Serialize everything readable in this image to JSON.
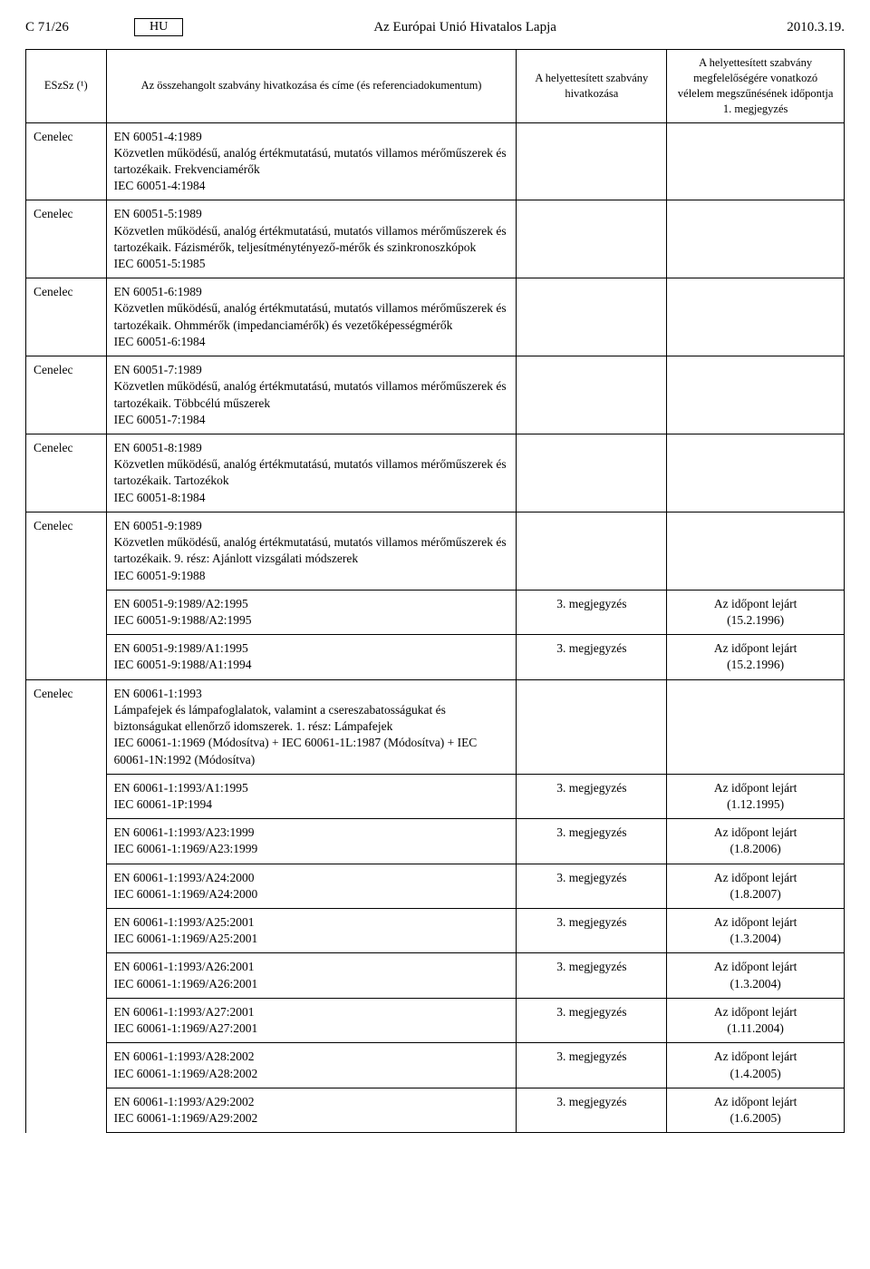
{
  "header": {
    "page_ref": "C 71/26",
    "lang": "HU",
    "journal": "Az Európai Unió Hivatalos Lapja",
    "date": "2010.3.19."
  },
  "columns": {
    "org": "ESzSz (¹)",
    "title": "Az összehangolt szabvány hivatkozása és címe\n(és referenciadokumentum)",
    "ref": "A helyettesített szabvány hivatkozása",
    "deadline": "A helyettesített szabvány megfelelőségére vonatkozó vélelem megszűnésének időpontja 1. megjegyzés"
  },
  "rows": [
    {
      "org": "Cenelec",
      "lines": [
        "EN 60051-4:1989",
        "Közvetlen működésű, analóg értékmutatású, mutatós villamos mérőmű­szerek és tartozékaik. Frekvenciamérők",
        "IEC 60051-4:1984"
      ],
      "ref": "",
      "deadline": ""
    },
    {
      "org": "Cenelec",
      "lines": [
        "EN 60051-5:1989",
        "Közvetlen működésű, analóg értékmutatású, mutatós villamos mérőmű­szerek és tartozékaik. Fázismérők, teljesítménytényező-mérők és szinkro­noszkópok",
        "IEC 60051-5:1985"
      ],
      "ref": "",
      "deadline": ""
    },
    {
      "org": "Cenelec",
      "lines": [
        "EN 60051-6:1989",
        "Közvetlen működésű, analóg értékmutatású, mutatós villamos mérőmű­szerek és tartozékaik. Ohmmérők (impedanciamérők) és vezetőképesség­mérők",
        "IEC 60051-6:1984"
      ],
      "ref": "",
      "deadline": ""
    },
    {
      "org": "Cenelec",
      "lines": [
        "EN 60051-7:1989",
        "Közvetlen működésű, analóg értékmutatású, mutatós villamos mérőmű­szerek és tartozékaik. Többcélú műszerek",
        "IEC 60051-7:1984"
      ],
      "ref": "",
      "deadline": ""
    },
    {
      "org": "Cenelec",
      "lines": [
        "EN 60051-8:1989",
        "Közvetlen működésű, analóg értékmutatású, mutatós villamos mérőmű­szerek és tartozékaik. Tartozékok",
        "IEC 60051-8:1984"
      ],
      "ref": "",
      "deadline": ""
    },
    {
      "org": "Cenelec",
      "lines": [
        "EN 60051-9:1989",
        "Közvetlen működésű, analóg értékmutatású, mutatós villamos mérőmű­szerek és tartozékaik. 9. rész: Ajánlott vizsgálati módszerek",
        "IEC 60051-9:1988"
      ],
      "ref": "",
      "deadline": ""
    },
    {
      "org": "",
      "lines": [
        "EN 60051-9:1989/A2:1995",
        "IEC 60051-9:1988/A2:1995"
      ],
      "ref": "3. megjegyzés",
      "deadline": "Az időpont lejárt\n(15.2.1996)"
    },
    {
      "org": "",
      "lines": [
        "EN 60051-9:1989/A1:1995",
        "IEC 60051-9:1988/A1:1994"
      ],
      "ref": "3. megjegyzés",
      "deadline": "Az időpont lejárt\n(15.2.1996)"
    },
    {
      "org": "Cenelec",
      "lines": [
        "EN 60061-1:1993",
        "Lámpafejek és lámpafoglalatok, valamint a csereszabatosságukat és biztonságukat ellenőrző idomszerek. 1. rész: Lámpafejek",
        "IEC 60061-1:1969 (Módosítva) + IEC 60061-1L:1987 (Módosítva) + IEC 60061-1N:1992 (Módosítva)"
      ],
      "ref": "",
      "deadline": ""
    },
    {
      "org": "",
      "lines": [
        "EN 60061-1:1993/A1:1995",
        "IEC 60061-1P:1994"
      ],
      "ref": "3. megjegyzés",
      "deadline": "Az időpont lejárt\n(1.12.1995)"
    },
    {
      "org": "",
      "lines": [
        "EN 60061-1:1993/A23:1999",
        "IEC 60061-1:1969/A23:1999"
      ],
      "ref": "3. megjegyzés",
      "deadline": "Az időpont lejárt\n(1.8.2006)"
    },
    {
      "org": "",
      "lines": [
        "EN 60061-1:1993/A24:2000",
        "IEC 60061-1:1969/A24:2000"
      ],
      "ref": "3. megjegyzés",
      "deadline": "Az időpont lejárt\n(1.8.2007)"
    },
    {
      "org": "",
      "lines": [
        "EN 60061-1:1993/A25:2001",
        "IEC 60061-1:1969/A25:2001"
      ],
      "ref": "3. megjegyzés",
      "deadline": "Az időpont lejárt\n(1.3.2004)"
    },
    {
      "org": "",
      "lines": [
        "EN 60061-1:1993/A26:2001",
        "IEC 60061-1:1969/A26:2001"
      ],
      "ref": "3. megjegyzés",
      "deadline": "Az időpont lejárt\n(1.3.2004)"
    },
    {
      "org": "",
      "lines": [
        "EN 60061-1:1993/A27:2001",
        "IEC 60061-1:1969/A27:2001"
      ],
      "ref": "3. megjegyzés",
      "deadline": "Az időpont lejárt\n(1.11.2004)"
    },
    {
      "org": "",
      "lines": [
        "EN 60061-1:1993/A28:2002",
        "IEC 60061-1:1969/A28:2002"
      ],
      "ref": "3. megjegyzés",
      "deadline": "Az időpont lejárt\n(1.4.2005)"
    },
    {
      "org": "",
      "lines": [
        "EN 60061-1:1993/A29:2002",
        "IEC 60061-1:1969/A29:2002"
      ],
      "ref": "3. megjegyzés",
      "deadline": "Az időpont lejárt\n(1.6.2005)"
    }
  ]
}
